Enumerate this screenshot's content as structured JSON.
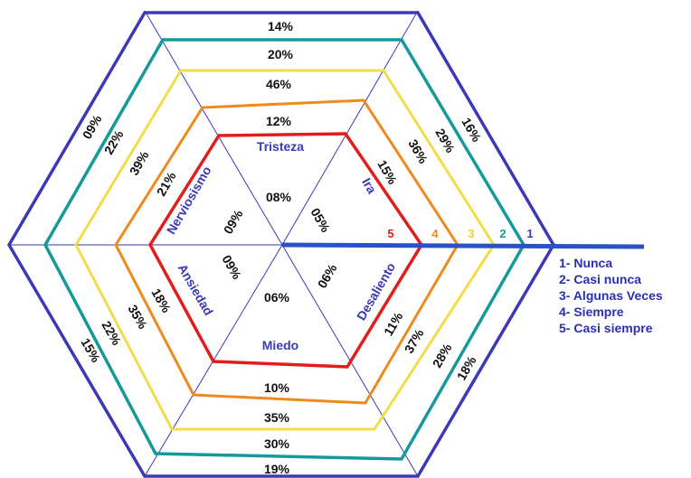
{
  "colors": {
    "level1": "#3a3ab8",
    "level2": "#16999a",
    "level3": "#f2dc4a",
    "level4": "#ee8a1e",
    "level5": "#e11d1d",
    "spoke": "#3a3ab8",
    "axis": "#2a52c8",
    "emotion_text": "#3a3ab8",
    "legend_text": "#2b2fb5"
  },
  "emotions": [
    {
      "key": "tristeza",
      "label": "Tristeza"
    },
    {
      "key": "ira",
      "label": "Ira"
    },
    {
      "key": "desaliento",
      "label": "Desaliento"
    },
    {
      "key": "miedo",
      "label": "Miedo"
    },
    {
      "key": "ansiedad",
      "label": "Ansiedad"
    },
    {
      "key": "nerviosismo",
      "label": "Nerviosismo"
    }
  ],
  "scale_numbers": [
    "1",
    "2",
    "3",
    "4",
    "5"
  ],
  "legend": [
    "1- Nunca",
    "2- Casi nunca",
    "3- Algunas Veces",
    "4- Siempre",
    "5- Casi siempre"
  ],
  "values": {
    "tristeza": [
      "14%",
      "20%",
      "46%",
      "12%",
      "08%"
    ],
    "ira": [
      "16%",
      "29%",
      "36%",
      "15%",
      "05%"
    ],
    "desaliento": [
      "18%",
      "28%",
      "37%",
      "11%",
      "06%"
    ],
    "miedo": [
      "19%",
      "30%",
      "35%",
      "10%",
      "06%"
    ],
    "ansiedad": [
      "15%",
      "22%",
      "35%",
      "18%",
      "09%"
    ],
    "nerviosismo": [
      "09%",
      "22%",
      "39%",
      "21%",
      "09%"
    ]
  }
}
